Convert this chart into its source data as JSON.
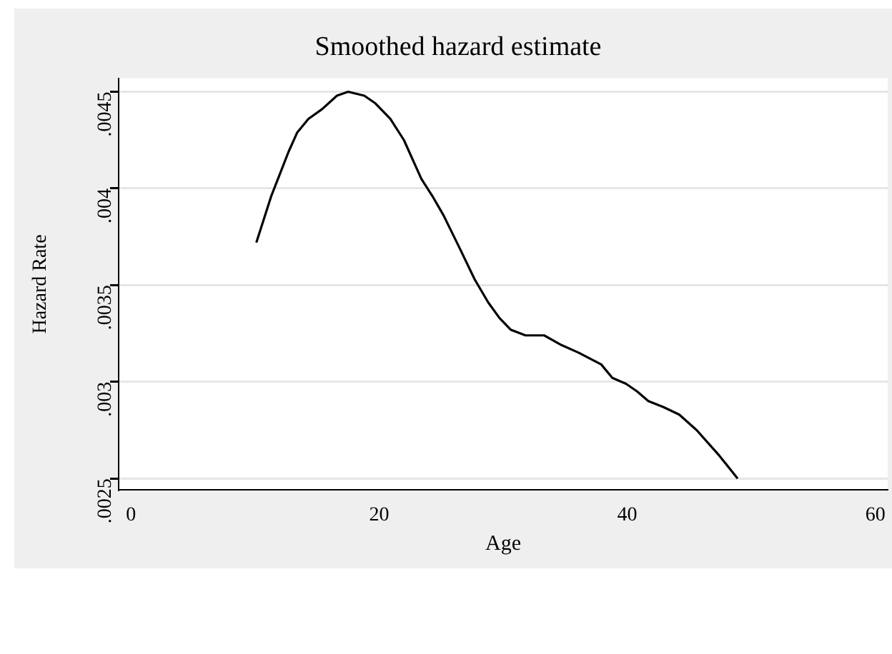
{
  "chart_data": {
    "type": "line",
    "title": "Smoothed hazard estimate",
    "xlabel": "Age",
    "ylabel": "Hazard Rate",
    "x": [
      10.1,
      10.7,
      11.3,
      12.7,
      13.4,
      14.3,
      15.4,
      16.6,
      17.5,
      18.8,
      19.7,
      20.9,
      22.0,
      23.4,
      24.3,
      25.2,
      26.5,
      27.7,
      28.8,
      29.7,
      30.6,
      31.8,
      33.3,
      34.7,
      36.1,
      37.9,
      38.8,
      39.9,
      40.8,
      41.7,
      42.9,
      44.2,
      45.6,
      47.4,
      48.9
    ],
    "series": [
      {
        "color": "#000000",
        "values": [
          0.00372,
          0.00384,
          0.00396,
          0.00419,
          0.00429,
          0.00436,
          0.00441,
          0.00448,
          0.0045,
          0.00448,
          0.00444,
          0.00436,
          0.00425,
          0.00405,
          0.00396,
          0.00386,
          0.00369,
          0.00353,
          0.00341,
          0.00333,
          0.00327,
          0.00324,
          0.00324,
          0.00319,
          0.00315,
          0.00309,
          0.00302,
          0.00299,
          0.00295,
          0.0029,
          0.00287,
          0.00283,
          0.00275,
          0.00262,
          0.0025
        ]
      }
    ],
    "xlim": [
      -1,
      61
    ],
    "xticks": [
      0,
      20,
      40,
      60
    ],
    "ylim": [
      0.00244,
      0.00457
    ],
    "yticks": [
      {
        "value": 0.0025,
        "label": ".0025"
      },
      {
        "value": 0.003,
        "label": ".003"
      },
      {
        "value": 0.0035,
        "label": ".0035"
      },
      {
        "value": 0.004,
        "label": ".004"
      },
      {
        "value": 0.0045,
        "label": ".0045"
      }
    ],
    "grid": "y",
    "legend": false,
    "marker": "none",
    "line_style": "solid"
  }
}
